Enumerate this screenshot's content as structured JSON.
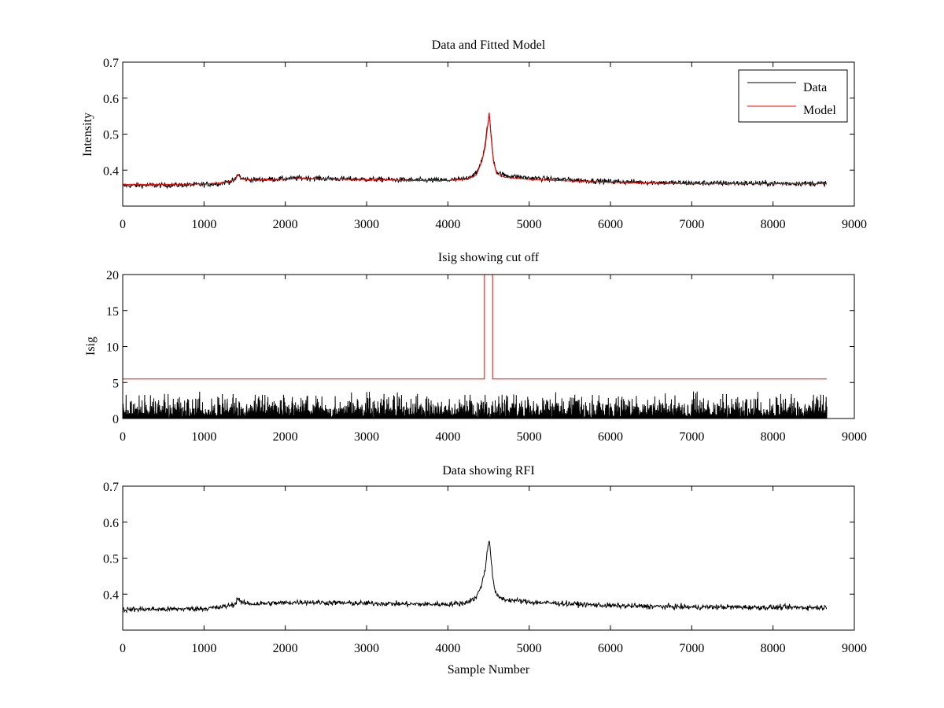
{
  "chart_data": [
    {
      "type": "line",
      "title": "Data and Fitted Model",
      "xlabel": "",
      "ylabel": "Intensity",
      "xlim": [
        0,
        9000
      ],
      "ylim": [
        0.3,
        0.7
      ],
      "xticks": [
        "0",
        "1000",
        "2000",
        "3000",
        "4000",
        "5000",
        "6000",
        "7000",
        "8000",
        "9000"
      ],
      "yticks": [
        "0.4",
        "0.5",
        "0.6",
        "0.7"
      ],
      "grid": false,
      "legend_position": "top-right",
      "series": [
        {
          "name": "Data",
          "color": "#000000",
          "x": [
            0,
            200,
            500,
            800,
            1000,
            1200,
            1380,
            1420,
            1460,
            1600,
            2000,
            2200,
            2400,
            2800,
            3200,
            3600,
            4000,
            4200,
            4350,
            4420,
            4460,
            4490,
            4510,
            4530,
            4560,
            4600,
            4700,
            5000,
            5500,
            6000,
            6500,
            7000,
            7500,
            8000,
            8500,
            8660
          ],
          "values": [
            0.357,
            0.358,
            0.358,
            0.359,
            0.36,
            0.363,
            0.372,
            0.39,
            0.376,
            0.373,
            0.376,
            0.378,
            0.377,
            0.375,
            0.374,
            0.372,
            0.372,
            0.375,
            0.39,
            0.43,
            0.47,
            0.53,
            0.555,
            0.5,
            0.43,
            0.395,
            0.385,
            0.378,
            0.373,
            0.368,
            0.366,
            0.364,
            0.364,
            0.363,
            0.363,
            0.363
          ],
          "noise": 0.006
        },
        {
          "name": "Model",
          "color": "#ff0000",
          "x": [
            0,
            200,
            500,
            800,
            1000,
            1200,
            1380,
            1420,
            1460,
            1600,
            2000,
            2200,
            2400,
            2800,
            3200,
            3600,
            4000,
            4200,
            4350,
            4420,
            4460,
            4490,
            4510,
            4530,
            4560,
            4600,
            4700,
            5000,
            5500,
            6000,
            6500,
            7000,
            7500,
            8000,
            8500,
            8660
          ],
          "values": [
            0.36,
            0.36,
            0.36,
            0.361,
            0.362,
            0.364,
            0.372,
            0.388,
            0.375,
            0.372,
            0.375,
            0.377,
            0.376,
            0.374,
            0.373,
            0.371,
            0.371,
            0.374,
            0.386,
            0.425,
            0.465,
            0.525,
            0.56,
            0.495,
            0.425,
            0.39,
            0.38,
            0.374,
            0.37,
            0.366,
            0.364,
            0.362,
            0.362,
            0.362,
            0.362,
            0.362
          ],
          "noise": 0
        }
      ]
    },
    {
      "type": "line",
      "title": "Isig showing cut off",
      "xlabel": "",
      "ylabel": "Isig",
      "xlim": [
        0,
        9000
      ],
      "ylim": [
        0,
        20
      ],
      "xticks": [
        "0",
        "1000",
        "2000",
        "3000",
        "4000",
        "5000",
        "6000",
        "7000",
        "8000",
        "9000"
      ],
      "yticks": [
        "0",
        "5",
        "10",
        "15",
        "20"
      ],
      "grid": false,
      "series": [
        {
          "color": "#000000",
          "style": "noise-band",
          "x_range": [
            0,
            8660
          ],
          "typical_max": 1.5,
          "peak_max": 3.8
        },
        {
          "color": "#ff0000",
          "x": [
            0,
            4450,
            4450,
            4550,
            4550,
            8660
          ],
          "values": [
            5.5,
            5.5,
            20,
            20,
            5.5,
            5.5
          ]
        }
      ]
    },
    {
      "type": "line",
      "title": "Data showing RFI",
      "xlabel": "Sample Number",
      "ylabel": "",
      "xlim": [
        0,
        9000
      ],
      "ylim": [
        0.3,
        0.7
      ],
      "xticks": [
        "0",
        "1000",
        "2000",
        "3000",
        "4000",
        "5000",
        "6000",
        "7000",
        "8000",
        "9000"
      ],
      "yticks": [
        "0.4",
        "0.5",
        "0.6",
        "0.7"
      ],
      "grid": false,
      "series": [
        {
          "color": "#000000",
          "x": [
            0,
            200,
            500,
            800,
            1000,
            1200,
            1380,
            1420,
            1460,
            1600,
            2000,
            2200,
            2400,
            2800,
            3200,
            3600,
            4000,
            4200,
            4350,
            4420,
            4460,
            4490,
            4510,
            4530,
            4560,
            4600,
            4700,
            5000,
            5500,
            6000,
            6500,
            7000,
            7500,
            8000,
            8500,
            8660
          ],
          "values": [
            0.357,
            0.358,
            0.358,
            0.359,
            0.36,
            0.363,
            0.372,
            0.39,
            0.376,
            0.373,
            0.376,
            0.378,
            0.377,
            0.375,
            0.374,
            0.372,
            0.372,
            0.375,
            0.39,
            0.43,
            0.47,
            0.53,
            0.555,
            0.5,
            0.43,
            0.395,
            0.385,
            0.378,
            0.373,
            0.368,
            0.366,
            0.364,
            0.364,
            0.363,
            0.363,
            0.363
          ],
          "noise": 0.006
        }
      ]
    }
  ]
}
